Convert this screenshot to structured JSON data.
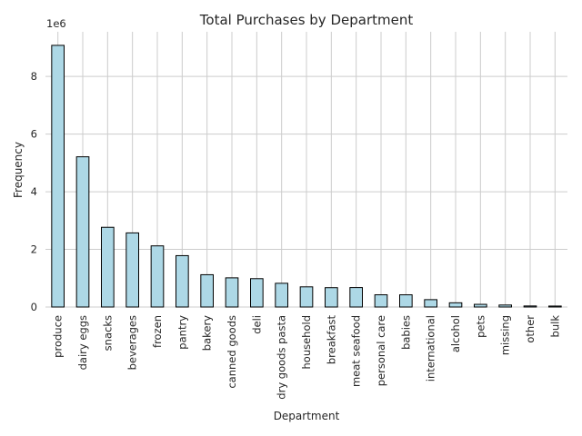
{
  "chart_data": {
    "type": "bar",
    "title": "Total Purchases by Department",
    "xlabel": "Department",
    "ylabel": "Frequency",
    "scale_label": "1e6",
    "categories": [
      "produce",
      "dairy eggs",
      "snacks",
      "beverages",
      "frozen",
      "pantry",
      "bakery",
      "canned goods",
      "deli",
      "dry goods pasta",
      "household",
      "breakfast",
      "meat seafood",
      "personal care",
      "babies",
      "international",
      "alcohol",
      "pets",
      "missing",
      "other",
      "bulk"
    ],
    "values": [
      9079273,
      5212590,
      2766406,
      2571901,
      2121731,
      1782705,
      1120828,
      1012074,
      984147,
      823316,
      699857,
      670850,
      674781,
      424306,
      423802,
      255991,
      146855,
      93060,
      69145,
      36291,
      33451
    ],
    "yticks": [
      0,
      2,
      4,
      6,
      8
    ],
    "ylim": [
      0,
      9.55
    ],
    "grid": true,
    "bar_color": "#add8e6",
    "edge_color": "#000000"
  }
}
